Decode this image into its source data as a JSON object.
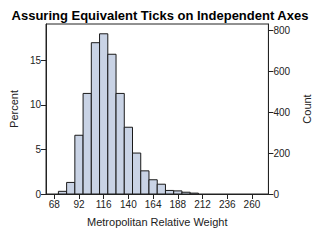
{
  "chart_data": {
    "type": "histogram",
    "title": "Assuring Equivalent Ticks on Independent Axes",
    "x_label": "Metropolitan Relative Weight",
    "y_label": "Percent",
    "y2_label": "Count",
    "bins": [
      72,
      80,
      88,
      96,
      104,
      112,
      120,
      128,
      136,
      144,
      152,
      160,
      168,
      176,
      184,
      192,
      200,
      208
    ],
    "values": [
      0.3,
      1.3,
      6.6,
      11.3,
      17.0,
      18.0,
      15.7,
      11.3,
      7.5,
      4.6,
      2.6,
      1.6,
      1.1,
      0.4,
      0.35,
      0.2,
      0.1
    ],
    "color": "#c9d3e5",
    "xlim": [
      60,
      276
    ],
    "xticks": [
      68,
      92,
      116,
      140,
      164,
      188,
      212,
      236,
      260
    ],
    "ylim": [
      0,
      19.1
    ],
    "yticks": [
      0,
      5,
      10,
      15
    ],
    "y2lim": [
      0,
      833
    ],
    "y2ticks": [
      0,
      200,
      400,
      600,
      800
    ]
  }
}
